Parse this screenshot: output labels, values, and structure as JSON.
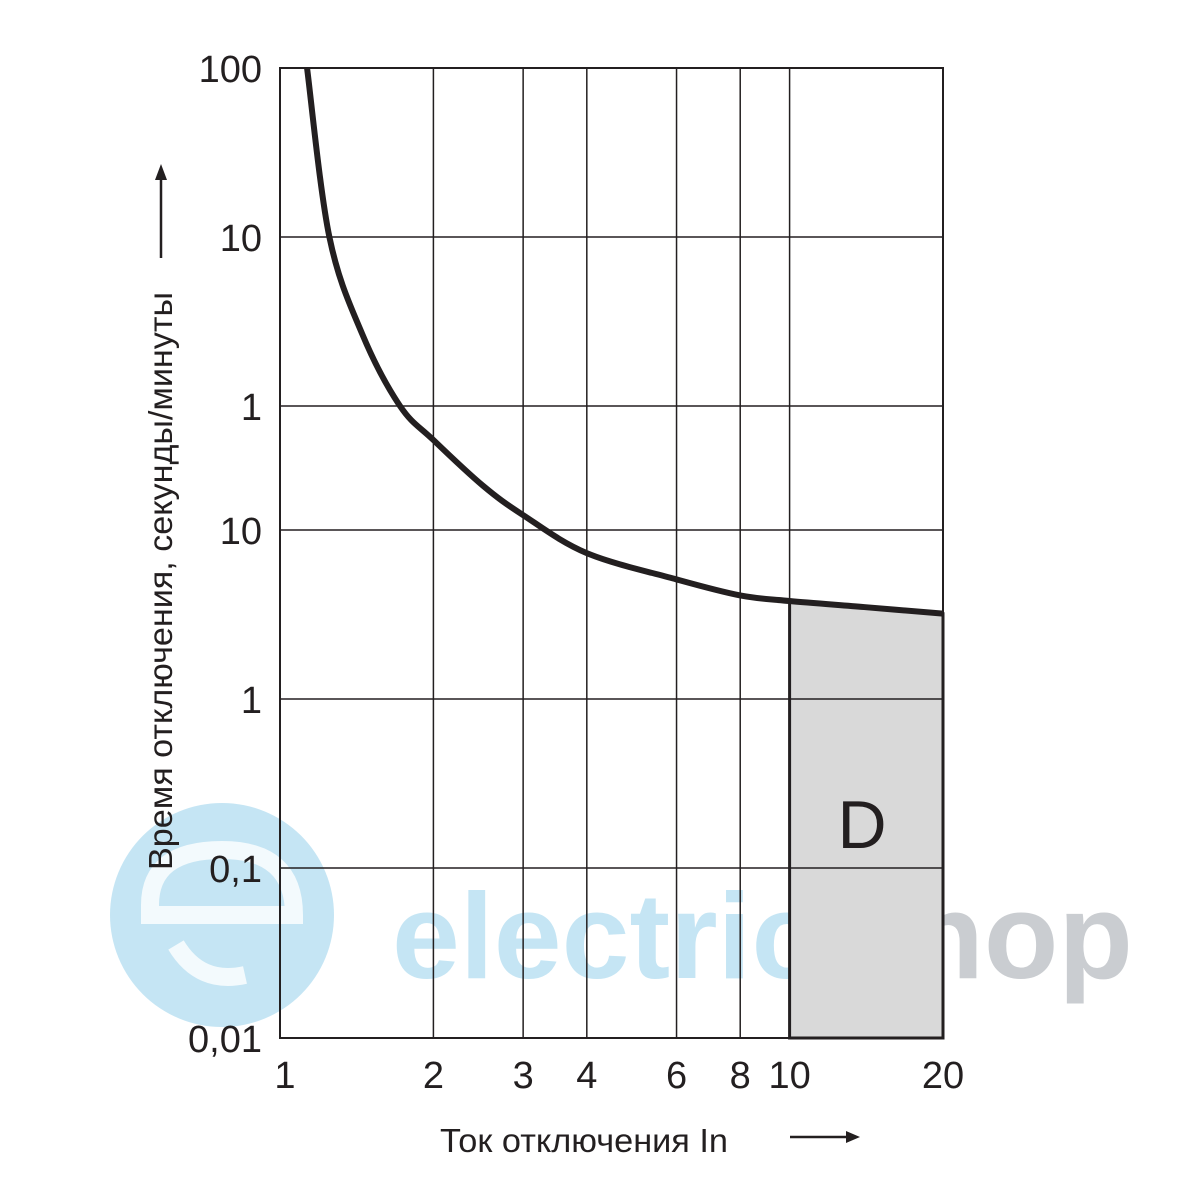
{
  "chart_data": {
    "type": "line",
    "title": "",
    "xlabel": "Ток отключения In",
    "ylabel": "Время отключения, секунды/минуты",
    "x_scale": "log",
    "y_scale": "log",
    "xlim": [
      1,
      20
    ],
    "ylim_seconds": [
      0.01,
      6000
    ],
    "grid": true,
    "x_ticks": [
      {
        "value": 1,
        "label": "1"
      },
      {
        "value": 2,
        "label": "2"
      },
      {
        "value": 3,
        "label": "3"
      },
      {
        "value": 4,
        "label": "4"
      },
      {
        "value": 6,
        "label": "6"
      },
      {
        "value": 8,
        "label": "8"
      },
      {
        "value": 10,
        "label": "10"
      },
      {
        "value": 20,
        "label": "20"
      }
    ],
    "y_ticks": [
      {
        "seconds": 6000,
        "label": "100",
        "unit": "minutes"
      },
      {
        "seconds": 600,
        "label": "10",
        "unit": "minutes"
      },
      {
        "seconds": 60,
        "label": "1",
        "unit": "minutes"
      },
      {
        "seconds": 10,
        "label": "10",
        "unit": "seconds"
      },
      {
        "seconds": 1,
        "label": "1",
        "unit": "seconds"
      },
      {
        "seconds": 0.1,
        "label": "0,1",
        "unit": "seconds"
      },
      {
        "seconds": 0.01,
        "label": "0,01",
        "unit": "seconds"
      }
    ],
    "series": [
      {
        "x": [
          1.13,
          1.25,
          1.45,
          1.72,
          2,
          2.5,
          3,
          4,
          6,
          8,
          10,
          14,
          20
        ],
        "y_seconds": [
          6000,
          600,
          160,
          60,
          36.7,
          19,
          12.4,
          7.3,
          5.1,
          4.1,
          3.8,
          3.5,
          3.2
        ],
        "color": "#231f20"
      }
    ],
    "region": {
      "label": "D",
      "x_range": [
        10,
        20
      ],
      "fill": "#d9d9d9"
    }
  },
  "watermark": {
    "text_part1": "electrica",
    "text_part2": "Shop",
    "color1": "#bfe3f3",
    "color2": "#c5c8cc"
  }
}
